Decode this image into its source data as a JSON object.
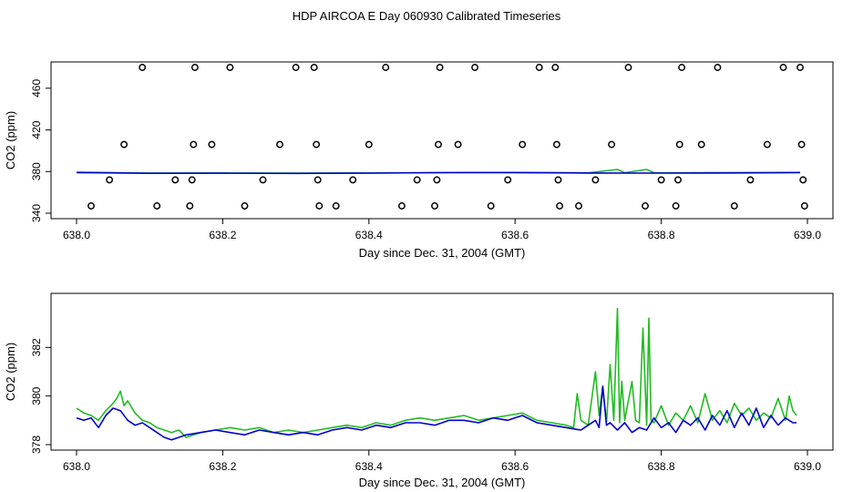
{
  "title": "HDP AIRCOA E  Day 060930  Calibrated Timeseries",
  "colors": {
    "series_a": "#22bb22",
    "series_b": "#0000cc",
    "axis": "#000000"
  },
  "chart_data": [
    {
      "type": "line",
      "panel": "top",
      "xlabel": "Day since Dec. 31, 2004 (GMT)",
      "ylabel": "CO2 (ppm)",
      "xlim": [
        638.0,
        639.0
      ],
      "ylim": [
        340,
        480
      ],
      "xticks": [
        "638.0",
        "638.2",
        "638.4",
        "638.6",
        "638.8",
        "639.0"
      ],
      "yticks": [
        "340",
        "380",
        "420",
        "460"
      ],
      "series": [
        {
          "color": "#22bb22",
          "x": [
            638.0,
            638.1,
            638.2,
            638.3,
            638.4,
            638.5,
            638.6,
            638.7,
            638.74,
            638.75,
            638.78,
            638.79,
            638.8,
            638.9,
            638.99
          ],
          "y": [
            379.5,
            378.5,
            378.6,
            378.4,
            378.6,
            379.0,
            379.1,
            378.8,
            382,
            378.9,
            382,
            378.9,
            378.8,
            379.0,
            379.2
          ]
        },
        {
          "color": "#0000cc",
          "x": [
            638.0,
            638.1,
            638.2,
            638.3,
            638.4,
            638.5,
            638.6,
            638.7,
            638.8,
            638.9,
            638.99
          ],
          "y": [
            379.0,
            378.3,
            378.4,
            378.2,
            378.5,
            378.9,
            379.0,
            378.6,
            378.5,
            378.7,
            378.9
          ]
        }
      ],
      "scatter": {
        "x": [
          638.02,
          638.045,
          638.065,
          638.09,
          638.11,
          638.135,
          638.155,
          638.158,
          638.16,
          638.162,
          638.185,
          638.21,
          638.23,
          638.255,
          638.278,
          638.3,
          638.325,
          638.328,
          638.33,
          638.332,
          638.355,
          638.378,
          638.4,
          638.423,
          638.445,
          638.466,
          638.49,
          638.493,
          638.495,
          638.497,
          638.522,
          638.545,
          638.567,
          638.59,
          638.61,
          638.633,
          638.655,
          638.657,
          638.659,
          638.661,
          638.687,
          638.71,
          638.732,
          638.755,
          638.778,
          638.8,
          638.82,
          638.823,
          638.825,
          638.828,
          638.855,
          638.877,
          638.9,
          638.922,
          638.945,
          638.967,
          638.99,
          638.992,
          638.994,
          638.996
        ],
        "y": [
          347,
          372,
          406,
          480,
          347,
          372,
          347,
          372,
          406,
          480,
          406,
          480,
          347,
          372,
          406,
          480,
          480,
          406,
          372,
          347,
          347,
          372,
          406,
          480,
          347,
          372,
          347,
          372,
          406,
          480,
          406,
          480,
          347,
          372,
          406,
          480,
          480,
          406,
          372,
          347,
          347,
          372,
          406,
          480,
          347,
          372,
          347,
          372,
          406,
          480,
          406,
          480,
          347,
          372,
          406,
          480,
          480,
          406,
          372,
          347
        ]
      }
    },
    {
      "type": "line",
      "panel": "bottom",
      "xlabel": "Day since Dec. 31, 2004 (GMT)",
      "ylabel": "CO2 (ppm)",
      "xlim": [
        638.0,
        639.0
      ],
      "ylim": [
        378,
        384
      ],
      "xticks": [
        "638.0",
        "638.2",
        "638.4",
        "638.6",
        "638.8",
        "639.0"
      ],
      "yticks": [
        "378",
        "380",
        "382"
      ],
      "series": [
        {
          "color": "#22bb22",
          "x": [
            638.0,
            638.01,
            638.02,
            638.03,
            638.04,
            638.05,
            638.055,
            638.06,
            638.065,
            638.07,
            638.08,
            638.09,
            638.1,
            638.11,
            638.12,
            638.13,
            638.14,
            638.15,
            638.17,
            638.19,
            638.21,
            638.23,
            638.25,
            638.27,
            638.29,
            638.31,
            638.33,
            638.35,
            638.37,
            638.39,
            638.41,
            638.43,
            638.45,
            638.47,
            638.49,
            638.51,
            638.53,
            638.55,
            638.57,
            638.59,
            638.61,
            638.63,
            638.65,
            638.67,
            638.68,
            638.685,
            638.69,
            638.7,
            638.71,
            638.715,
            638.72,
            638.725,
            638.73,
            638.735,
            638.74,
            638.743,
            638.746,
            638.75,
            638.76,
            638.765,
            638.77,
            638.775,
            638.78,
            638.783,
            638.786,
            638.79,
            638.8,
            638.81,
            638.82,
            638.83,
            638.84,
            638.85,
            638.86,
            638.87,
            638.88,
            638.89,
            638.9,
            638.91,
            638.92,
            638.93,
            638.94,
            638.95,
            638.96,
            638.97,
            638.975,
            638.98,
            638.985
          ],
          "y": [
            379.5,
            379.3,
            379.2,
            379.0,
            379.4,
            379.7,
            379.9,
            380.2,
            379.6,
            379.8,
            379.3,
            379.0,
            378.9,
            378.7,
            378.6,
            378.5,
            378.6,
            378.3,
            378.5,
            378.6,
            378.7,
            378.6,
            378.7,
            378.5,
            378.6,
            378.5,
            378.6,
            378.7,
            378.8,
            378.7,
            378.9,
            378.8,
            379.0,
            379.1,
            379.0,
            379.1,
            379.2,
            379.0,
            379.1,
            379.2,
            379.3,
            379.0,
            378.9,
            378.8,
            378.7,
            380.1,
            379.0,
            378.8,
            381.0,
            379.2,
            380.4,
            378.9,
            381.3,
            379.0,
            383.6,
            378.9,
            380.6,
            379.0,
            380.6,
            379.0,
            378.9,
            382.8,
            378.8,
            383.2,
            379.0,
            378.9,
            379.6,
            378.8,
            379.3,
            379.0,
            379.6,
            378.9,
            380.1,
            379.0,
            379.4,
            378.9,
            379.7,
            379.2,
            379.5,
            379.0,
            379.3,
            379.1,
            379.9,
            379.0,
            380.0,
            379.4,
            379.2
          ]
        },
        {
          "color": "#0000cc",
          "x": [
            638.0,
            638.01,
            638.02,
            638.03,
            638.04,
            638.05,
            638.06,
            638.07,
            638.08,
            638.09,
            638.1,
            638.11,
            638.12,
            638.13,
            638.15,
            638.17,
            638.19,
            638.21,
            638.23,
            638.25,
            638.27,
            638.29,
            638.31,
            638.33,
            638.35,
            638.37,
            638.39,
            638.41,
            638.43,
            638.45,
            638.47,
            638.49,
            638.51,
            638.53,
            638.55,
            638.57,
            638.59,
            638.61,
            638.63,
            638.65,
            638.67,
            638.69,
            638.7,
            638.71,
            638.715,
            638.72,
            638.725,
            638.73,
            638.74,
            638.75,
            638.76,
            638.77,
            638.78,
            638.79,
            638.8,
            638.81,
            638.82,
            638.83,
            638.84,
            638.85,
            638.86,
            638.87,
            638.88,
            638.89,
            638.9,
            638.91,
            638.92,
            638.93,
            638.94,
            638.95,
            638.96,
            638.97,
            638.98,
            638.985
          ],
          "y": [
            379.1,
            379.0,
            379.1,
            378.7,
            379.2,
            379.5,
            379.4,
            379.0,
            378.8,
            378.9,
            378.7,
            378.5,
            378.3,
            378.2,
            378.4,
            378.5,
            378.6,
            378.5,
            378.4,
            378.6,
            378.5,
            378.4,
            378.5,
            378.4,
            378.6,
            378.7,
            378.6,
            378.8,
            378.7,
            378.9,
            378.9,
            378.8,
            379.0,
            379.0,
            378.9,
            379.1,
            379.0,
            379.2,
            378.9,
            378.8,
            378.7,
            378.6,
            378.8,
            379.0,
            378.7,
            380.4,
            378.8,
            378.9,
            378.6,
            378.9,
            378.5,
            378.7,
            378.6,
            379.1,
            378.7,
            378.9,
            378.5,
            379.0,
            378.8,
            379.1,
            378.6,
            379.2,
            378.8,
            379.4,
            378.7,
            379.3,
            378.8,
            379.5,
            378.7,
            379.2,
            378.8,
            379.1,
            378.9,
            378.9
          ]
        }
      ]
    }
  ]
}
